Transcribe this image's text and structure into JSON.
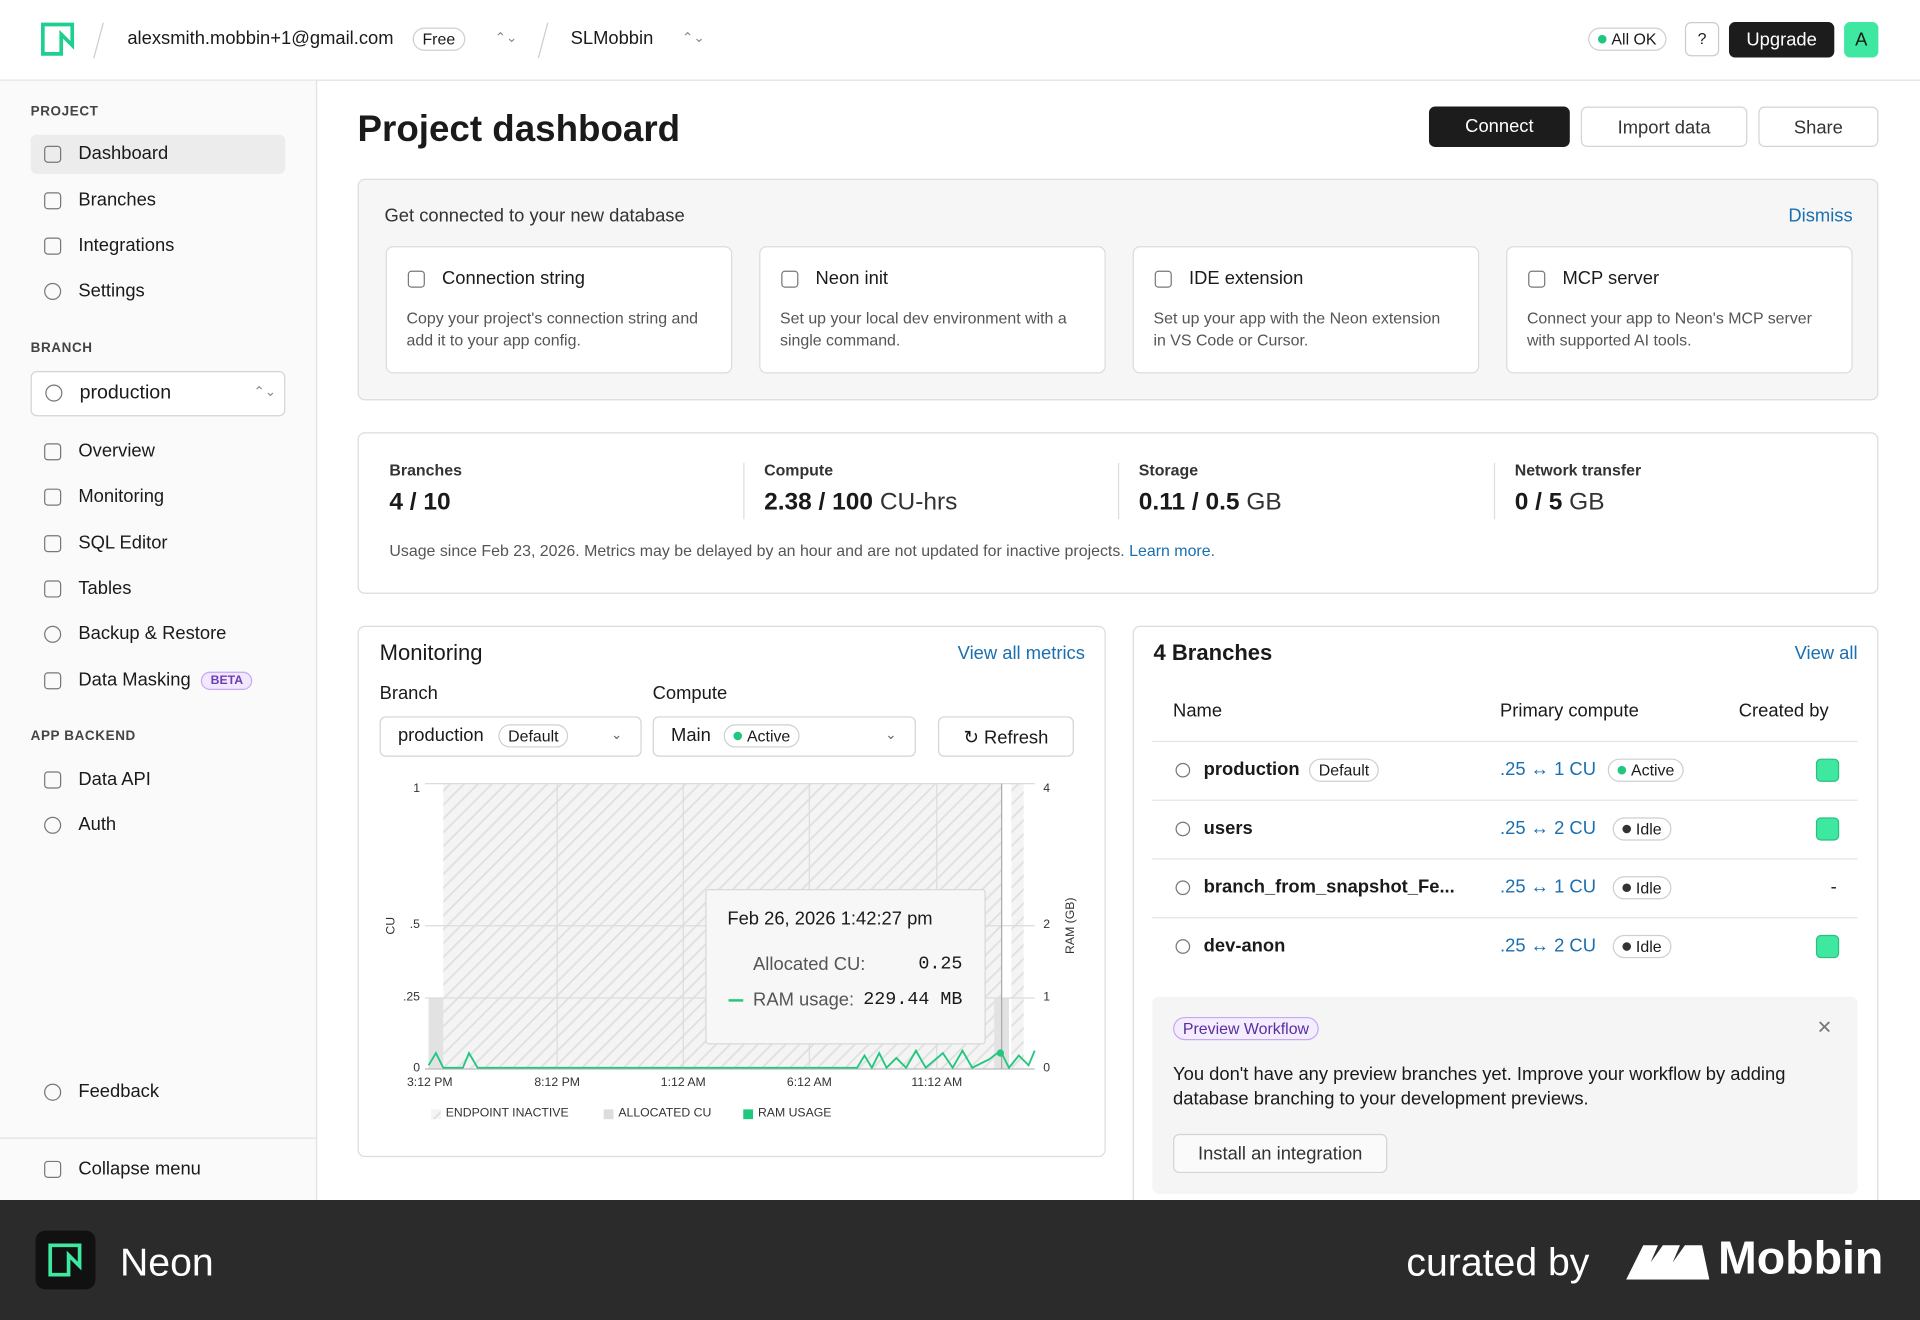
{
  "topbar": {
    "account": "alexsmith.mobbin+1@gmail.com",
    "plan": "Free",
    "project": "SLMobbin",
    "status": "All OK",
    "upgrade": "Upgrade",
    "avatar": "A"
  },
  "sidebar": {
    "project_title": "PROJECT",
    "project_items": [
      "Dashboard",
      "Branches",
      "Integrations",
      "Settings"
    ],
    "branch_title": "BRANCH",
    "branch": "production",
    "branch_items": [
      "Overview",
      "Monitoring",
      "SQL Editor",
      "Tables",
      "Backup & Restore",
      "Data Masking"
    ],
    "beta": "BETA",
    "backend_title": "APP BACKEND",
    "backend_items": [
      "Data API",
      "Auth"
    ],
    "feedback": "Feedback",
    "collapse": "Collapse menu"
  },
  "header": {
    "title": "Project dashboard",
    "actions": [
      "Connect",
      "Import data",
      "Share"
    ]
  },
  "connect": {
    "title": "Get connected to your new database",
    "dismiss": "Dismiss",
    "cards": [
      {
        "title": "Connection string",
        "desc": [
          "Copy your project's connection string and",
          "add it to your app config."
        ]
      },
      {
        "title": "Neon init",
        "desc": [
          "Set up your local dev environment with a",
          "single command."
        ]
      },
      {
        "title": "IDE extension",
        "desc": [
          "Set up your app with the Neon extension",
          "in VS Code or Cursor."
        ]
      },
      {
        "title": "MCP server",
        "desc": [
          "Connect your app to Neon's MCP server",
          "with supported AI tools."
        ]
      }
    ]
  },
  "usage": {
    "metrics": [
      {
        "label": "Branches",
        "value": "4 / 10"
      },
      {
        "label": "Compute",
        "value": "2.38 / 100",
        "unit": "CU-hrs"
      },
      {
        "label": "Storage",
        "value": "0.11 / 0.5",
        "unit": "GB"
      },
      {
        "label": "Network transfer",
        "value": "0 / 5",
        "unit": "GB"
      }
    ],
    "note": "Usage since Feb 23, 2026. Metrics may be delayed by an hour and are not updated for inactive projects.",
    "link": "Learn more."
  },
  "monitoring": {
    "title": "Monitoring",
    "view_all": "View all metrics",
    "branch_label": "Branch",
    "branch": "production",
    "branch_badge": "Default",
    "compute_label": "Compute",
    "compute": "Main",
    "compute_badge": "Active",
    "refresh": "Refresh",
    "y_label": "CU",
    "y2_label": "RAM (GB)",
    "yticks": [
      "1",
      ".5",
      ".25",
      "0"
    ],
    "y2ticks": [
      "4",
      "2",
      "1",
      "0"
    ],
    "xticks": [
      "3:12 PM",
      "8:12 PM",
      "1:12 AM",
      "6:12 AM",
      "11:12 AM"
    ],
    "tooltip": {
      "time": "Feb 26, 2026 1:42:27 pm",
      "allocated_label": "Allocated CU:",
      "allocated": "0.25",
      "ram_label": "RAM usage:",
      "ram": "229.44 MB"
    },
    "legend": [
      "ENDPOINT INACTIVE",
      "ALLOCATED CU",
      "RAM USAGE"
    ]
  },
  "branches": {
    "title": "4 Branches",
    "view_all": "View all",
    "columns": [
      "Name",
      "Primary compute",
      "Created by"
    ],
    "rows": [
      {
        "name": "production",
        "badge": "Default",
        "compute": ".25 ↔ 1 CU",
        "state": "Active"
      },
      {
        "name": "users",
        "compute": ".25 ↔ 2 CU",
        "state": "Idle"
      },
      {
        "name": "branch_from_snapshot_Fe...",
        "compute": ".25 ↔ 1 CU",
        "state": "Idle",
        "created_by": "-"
      },
      {
        "name": "dev-anon",
        "compute": ".25 ↔ 2 CU",
        "state": "Idle"
      }
    ],
    "preview": {
      "badge": "Preview Workflow",
      "text": [
        "You don't have any preview branches yet. Improve your workflow by adding",
        "database branching to your development previews."
      ],
      "button": "Install an integration"
    }
  },
  "footer": {
    "brand": "Neon",
    "curated": "curated by",
    "mobbin": "Mobbin"
  }
}
